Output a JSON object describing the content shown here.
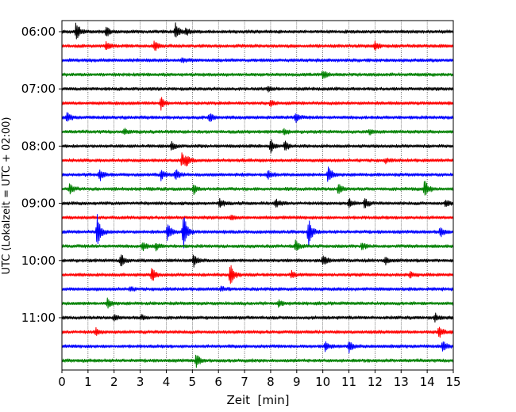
{
  "chart_data": {
    "type": "line",
    "title": "",
    "xlabel": "Zeit  [min]",
    "ylabel": "UTC (Lokalzeit = UTC + 02:00)",
    "xlim": [
      0,
      15
    ],
    "x_ticks": [
      0,
      1,
      2,
      3,
      4,
      5,
      6,
      7,
      8,
      9,
      10,
      11,
      12,
      13,
      14,
      15
    ],
    "y_tick_labels": [
      "06:00",
      "07:00",
      "08:00",
      "09:00",
      "10:00",
      "11:00"
    ],
    "grid": "vertical dotted",
    "trace_interval_min": 15,
    "trace_colors": [
      "#000000",
      "#ff0000",
      "#0000ff",
      "#008000"
    ],
    "traces": [
      {
        "start": "06:00",
        "events": [
          [
            0.55,
            1.0
          ],
          [
            1.7,
            0.5
          ],
          [
            4.35,
            0.9
          ],
          [
            4.75,
            0.35
          ]
        ]
      },
      {
        "start": "06:15",
        "events": [
          [
            1.7,
            0.35
          ],
          [
            3.55,
            0.55
          ],
          [
            12.0,
            0.45
          ]
        ]
      },
      {
        "start": "06:30",
        "events": [
          [
            4.6,
            0.2
          ]
        ]
      },
      {
        "start": "06:45",
        "events": [
          [
            10.0,
            0.4
          ]
        ]
      },
      {
        "start": "07:00",
        "events": [
          [
            7.9,
            0.2
          ]
        ]
      },
      {
        "start": "07:15",
        "events": [
          [
            3.8,
            0.55
          ],
          [
            8.0,
            0.3
          ]
        ]
      },
      {
        "start": "07:30",
        "events": [
          [
            0.2,
            0.45
          ],
          [
            5.65,
            0.4
          ],
          [
            8.95,
            0.45
          ]
        ]
      },
      {
        "start": "07:45",
        "events": [
          [
            2.4,
            0.25
          ],
          [
            8.5,
            0.25
          ],
          [
            11.8,
            0.2
          ]
        ]
      },
      {
        "start": "08:00",
        "events": [
          [
            4.2,
            0.35
          ],
          [
            8.0,
            0.6
          ],
          [
            8.55,
            0.5
          ]
        ]
      },
      {
        "start": "08:15",
        "events": [
          [
            4.6,
            0.6
          ],
          [
            4.75,
            0.45
          ],
          [
            12.4,
            0.2
          ]
        ]
      },
      {
        "start": "08:30",
        "events": [
          [
            1.45,
            0.5
          ],
          [
            3.8,
            0.45
          ],
          [
            4.35,
            0.55
          ],
          [
            7.9,
            0.35
          ],
          [
            10.2,
            0.8
          ]
        ]
      },
      {
        "start": "08:45",
        "events": [
          [
            0.3,
            0.45
          ],
          [
            5.05,
            0.4
          ],
          [
            10.6,
            0.55
          ],
          [
            13.9,
            0.85
          ]
        ]
      },
      {
        "start": "09:00",
        "events": [
          [
            6.05,
            0.4
          ],
          [
            8.2,
            0.35
          ],
          [
            11.0,
            0.4
          ],
          [
            11.6,
            0.45
          ],
          [
            14.7,
            0.35
          ]
        ]
      },
      {
        "start": "09:15",
        "events": [
          [
            6.5,
            0.2
          ]
        ]
      },
      {
        "start": "09:30",
        "events": [
          [
            1.35,
            1.6
          ],
          [
            4.05,
            0.85
          ],
          [
            4.65,
            1.9
          ],
          [
            9.45,
            1.3
          ],
          [
            14.5,
            0.45
          ]
        ]
      },
      {
        "start": "09:45",
        "events": [
          [
            3.1,
            0.45
          ],
          [
            3.6,
            0.35
          ],
          [
            8.95,
            0.55
          ],
          [
            11.5,
            0.35
          ]
        ]
      },
      {
        "start": "10:00",
        "events": [
          [
            2.25,
            0.65
          ],
          [
            5.05,
            0.55
          ],
          [
            10.0,
            0.55
          ],
          [
            12.4,
            0.35
          ]
        ]
      },
      {
        "start": "10:15",
        "events": [
          [
            3.45,
            0.65
          ],
          [
            6.45,
            1.2
          ],
          [
            8.8,
            0.3
          ],
          [
            13.35,
            0.2
          ]
        ]
      },
      {
        "start": "10:30",
        "events": [
          [
            2.6,
            0.2
          ],
          [
            6.1,
            0.2
          ]
        ]
      },
      {
        "start": "10:45",
        "events": [
          [
            1.75,
            0.4
          ],
          [
            8.3,
            0.25
          ]
        ]
      },
      {
        "start": "11:00",
        "events": [
          [
            2.0,
            0.3
          ],
          [
            3.05,
            0.2
          ],
          [
            14.3,
            0.35
          ]
        ]
      },
      {
        "start": "11:15",
        "events": [
          [
            1.3,
            0.3
          ],
          [
            14.45,
            0.6
          ]
        ]
      },
      {
        "start": "11:30",
        "events": [
          [
            10.1,
            0.45
          ],
          [
            11.0,
            0.55
          ],
          [
            14.6,
            0.5
          ]
        ]
      },
      {
        "start": "11:45",
        "events": [
          [
            5.15,
            0.6
          ]
        ]
      }
    ]
  }
}
